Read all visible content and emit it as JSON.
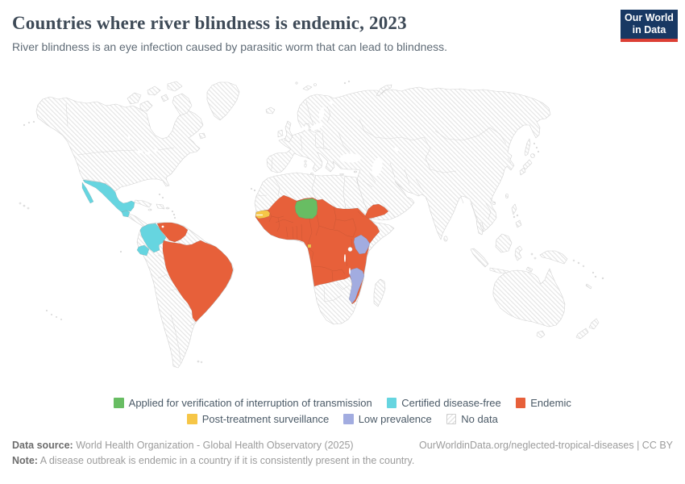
{
  "header": {
    "title": "Countries where river blindness is endemic, 2023",
    "subtitle": "River blindness is an eye infection caused by parasitic worm that can lead to blindness.",
    "logo_line1": "Our World",
    "logo_line2": "in Data"
  },
  "chart_data": {
    "type": "choropleth-map",
    "title": "Countries where river blindness is endemic",
    "year": 2023,
    "categories": [
      {
        "key": "applied",
        "label": "Applied for verification of interruption of transmission",
        "color": "#68bd63"
      },
      {
        "key": "certified",
        "label": "Certified disease-free",
        "color": "#66d5e0"
      },
      {
        "key": "endemic",
        "label": "Endemic",
        "color": "#e7603a"
      },
      {
        "key": "post_treatment",
        "label": "Post-treatment surveillance",
        "color": "#f6c647"
      },
      {
        "key": "low_prevalence",
        "label": "Low prevalence",
        "color": "#a2ace0"
      },
      {
        "key": "no_data",
        "label": "No data",
        "color": "hatch"
      }
    ],
    "legend_rows": [
      [
        "applied",
        "certified",
        "endemic"
      ],
      [
        "post_treatment",
        "low_prevalence",
        "no_data"
      ]
    ],
    "countries_by_status": {
      "applied": [
        "Niger"
      ],
      "certified": [
        "Mexico",
        "Guatemala",
        "Colombia",
        "Ecuador"
      ],
      "endemic": [
        "Brazil",
        "Venezuela",
        "Yemen",
        "Mali",
        "Guinea",
        "Sierra Leone",
        "Liberia",
        "Cote d'Ivoire",
        "Ghana",
        "Togo",
        "Benin",
        "Burkina Faso",
        "Nigeria",
        "Cameroon",
        "Chad",
        "Sudan",
        "Eritrea",
        "Ethiopia",
        "South Sudan",
        "Central African Republic",
        "DR Congo",
        "Congo",
        "Gabon",
        "Uganda",
        "Tanzania",
        "Rwanda",
        "Burundi",
        "Angola",
        "Zambia",
        "Malawi"
      ],
      "post_treatment": [
        "Senegal",
        "Equatorial Guinea"
      ],
      "low_prevalence": [
        "Kenya",
        "Mozambique"
      ],
      "no_data": [
        "rest of world"
      ]
    }
  },
  "footer": {
    "source_label": "Data source:",
    "source_text": " World Health Organization - Global Health Observatory (2025)",
    "link_text": "OurWorldinData.org/neglected-tropical-diseases | CC BY",
    "note_label": "Note:",
    "note_text": " A disease outbreak is endemic in a country if it is consistently present in the country."
  }
}
